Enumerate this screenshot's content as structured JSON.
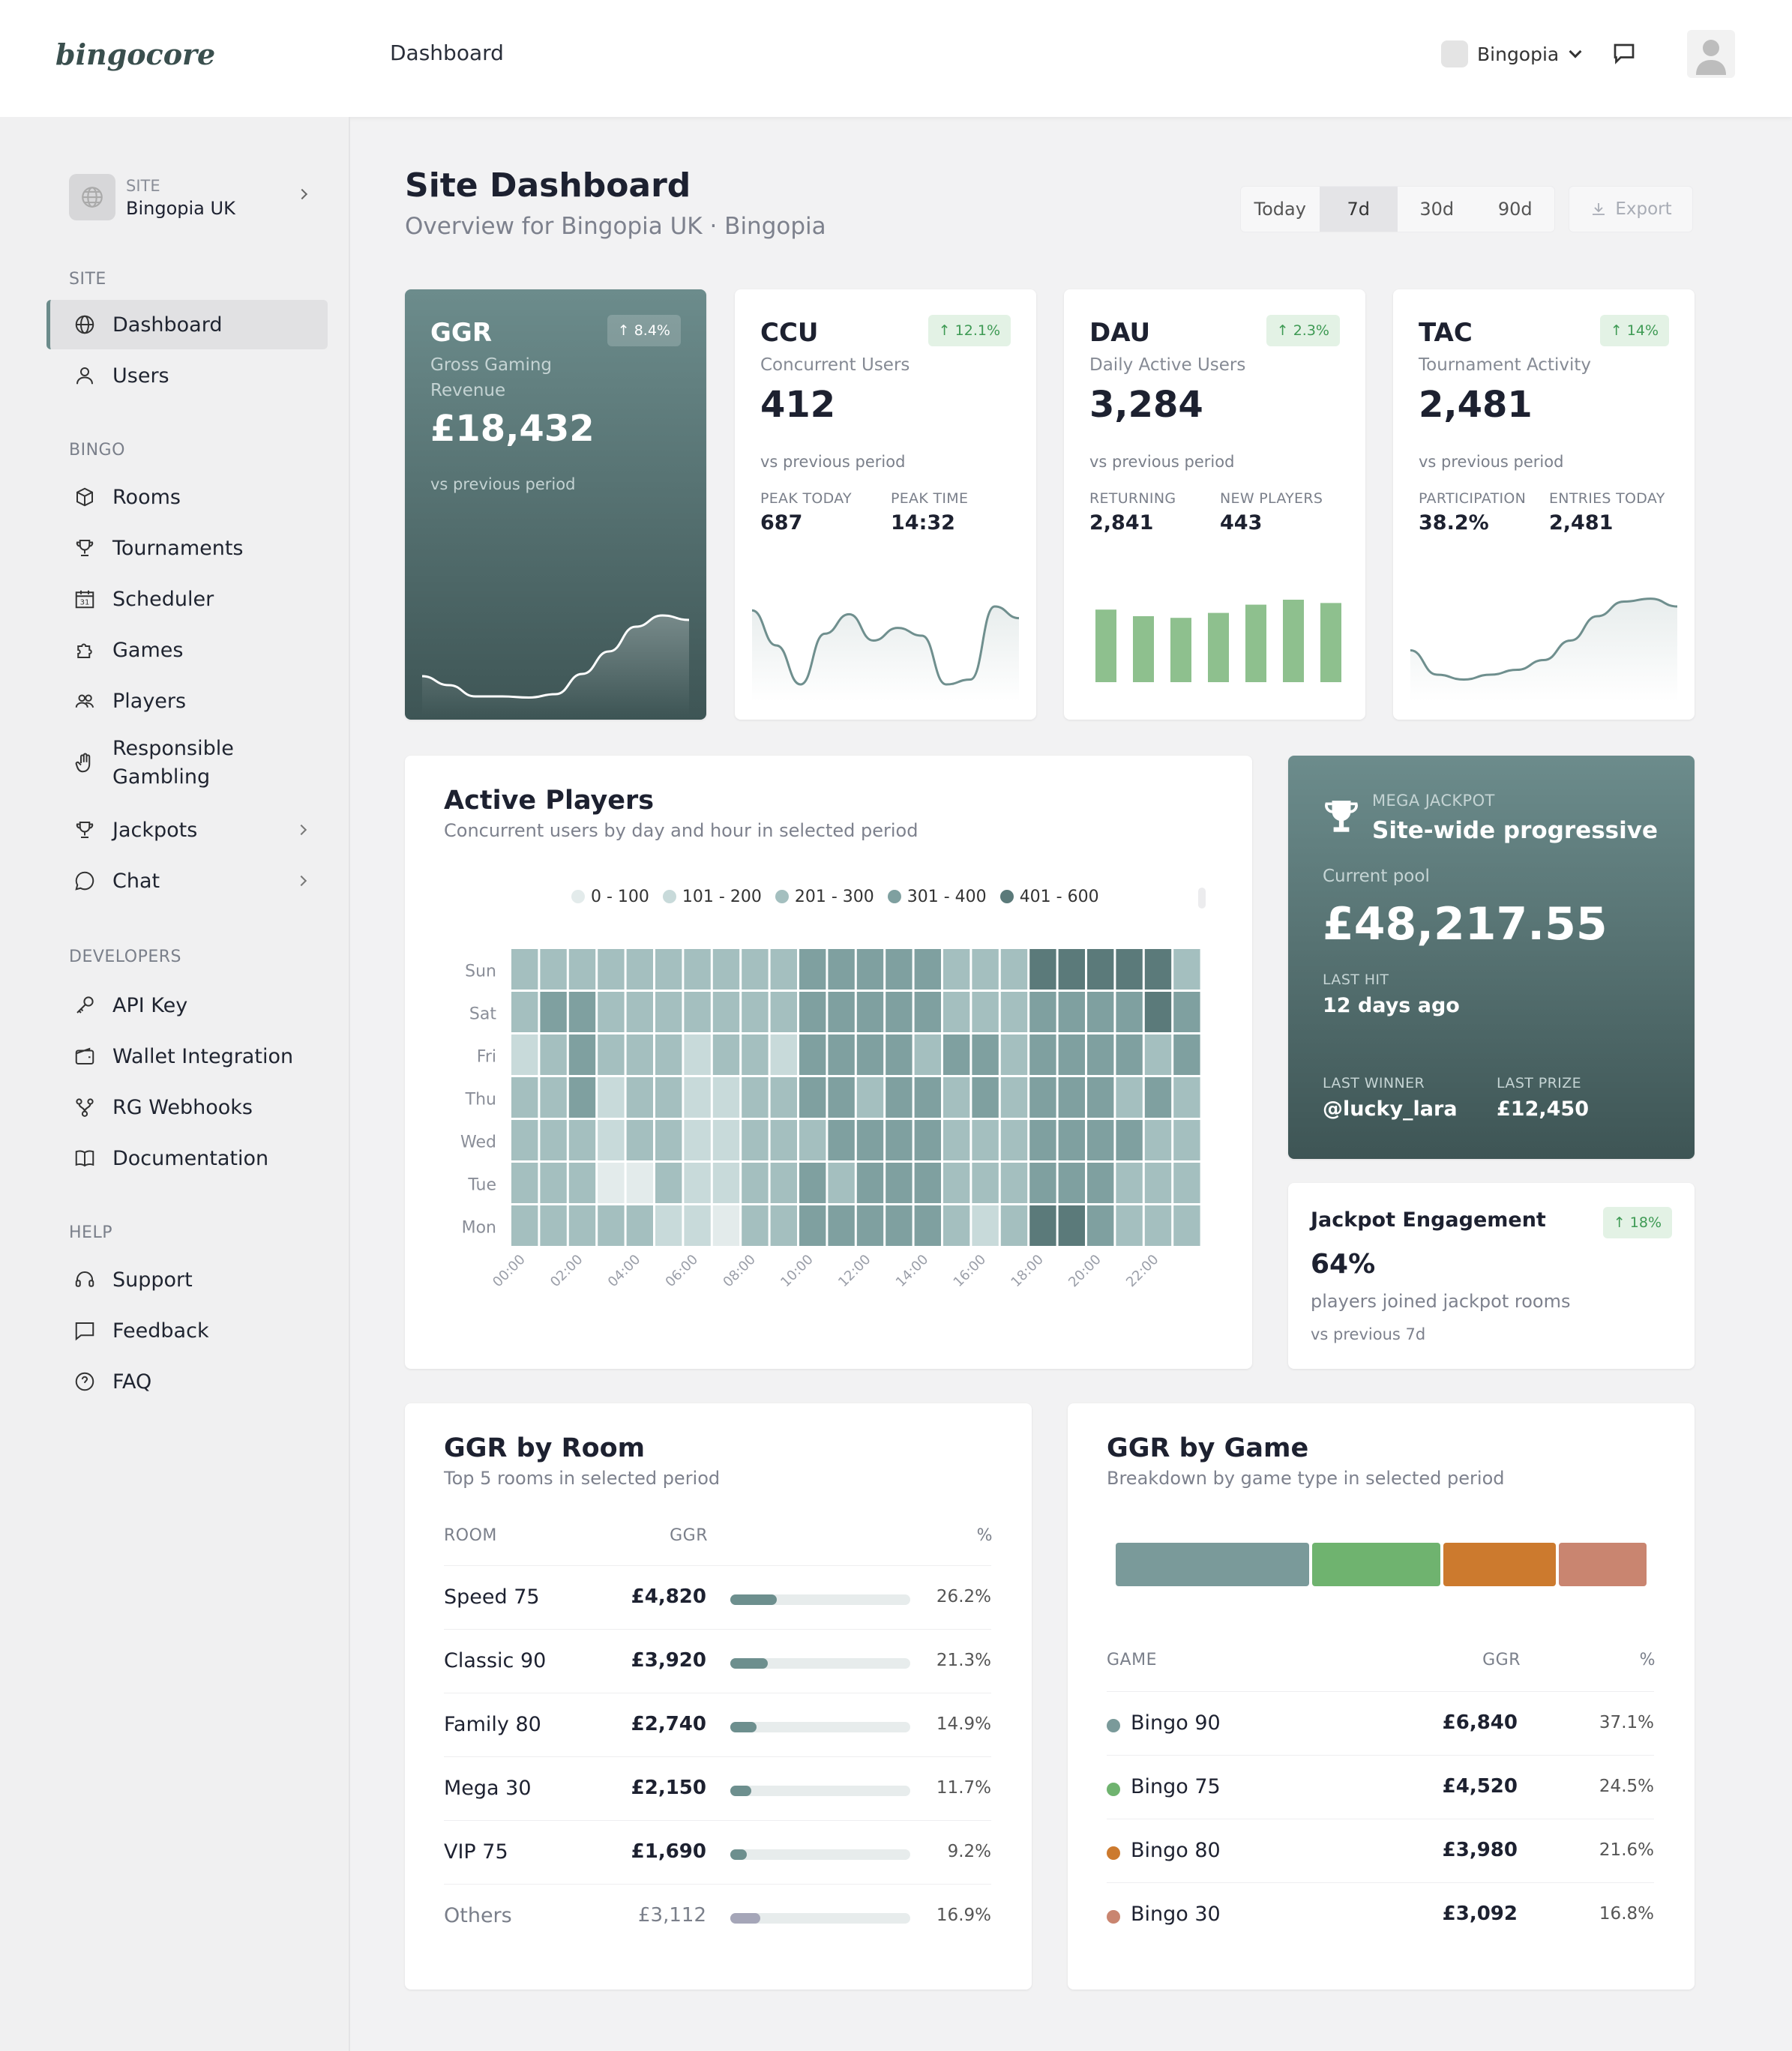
{
  "app": {
    "logo": "bingocore",
    "header_title": "Dashboard",
    "brand": "Bingopia"
  },
  "sidebar": {
    "site_label": "SITE",
    "site_name": "Bingopia UK",
    "sections": {
      "site": "SITE",
      "bingo": "BINGO",
      "developers": "DEVELOPERS",
      "help": "HELP"
    },
    "items": {
      "dashboard": "Dashboard",
      "users": "Users",
      "rooms": "Rooms",
      "tournaments": "Tournaments",
      "scheduler": "Scheduler",
      "games": "Games",
      "players": "Players",
      "responsible_1": "Responsible",
      "responsible_2": "Gambling",
      "jackpots": "Jackpots",
      "chat": "Chat",
      "api_key": "API Key",
      "wallet": "Wallet Integration",
      "webhooks": "RG Webhooks",
      "docs": "Documentation",
      "support": "Support",
      "feedback": "Feedback",
      "faq": "FAQ"
    },
    "calendar_day": "31"
  },
  "page": {
    "title": "Site Dashboard",
    "subtitle": "Overview for Bingopia UK · Bingopia"
  },
  "ranges": [
    "Today",
    "7d",
    "30d",
    "90d"
  ],
  "selected_range": "7d",
  "export_label": "Export",
  "kpis": {
    "ggr": {
      "title": "GGR",
      "sub": "Gross Gaming Revenue",
      "value": "£18,432",
      "vs": "vs previous period",
      "badge": "8.4%"
    },
    "ccu": {
      "title": "CCU",
      "sub": "Concurrent Users",
      "value": "412",
      "vs": "vs previous period",
      "badge": "12.1%",
      "m1_label": "PEAK TODAY",
      "m1_value": "687",
      "m2_label": "PEAK TIME",
      "m2_value": "14:32"
    },
    "dau": {
      "title": "DAU",
      "sub": "Daily Active Users",
      "value": "3,284",
      "vs": "vs previous period",
      "badge": "2.3%",
      "m1_label": "RETURNING",
      "m1_value": "2,841",
      "m2_label": "NEW PLAYERS",
      "m2_value": "443"
    },
    "tac": {
      "title": "TAC",
      "sub": "Tournament Activity",
      "value": "2,481",
      "vs": "vs previous period",
      "badge": "14%",
      "m1_label": "PARTICIPATION",
      "m1_value": "38.2%",
      "m2_label": "ENTRIES TODAY",
      "m2_value": "2,481"
    }
  },
  "active_players": {
    "title": "Active Players",
    "subtitle": "Concurrent users by day and hour in selected period",
    "legend": [
      "0 - 100",
      "101 - 200",
      "201 - 300",
      "301 - 400",
      "401 - 600"
    ],
    "legend_colors": [
      "#e3ebeb",
      "#c8dada",
      "#a4bfbf",
      "#7fa0a0",
      "#5b7a7a"
    ],
    "days": [
      "Sun",
      "Sat",
      "Fri",
      "Thu",
      "Wed",
      "Tue",
      "Mon"
    ],
    "hours": [
      "00:00",
      "02:00",
      "04:00",
      "06:00",
      "08:00",
      "10:00",
      "12:00",
      "14:00",
      "16:00",
      "18:00",
      "20:00",
      "22:00"
    ],
    "levels": [
      [
        2,
        2,
        2,
        2,
        2,
        2,
        2,
        2,
        2,
        2,
        3,
        3,
        3,
        3,
        3,
        2,
        2,
        2,
        4,
        4,
        4,
        4,
        4,
        2
      ],
      [
        2,
        3,
        3,
        2,
        2,
        2,
        2,
        2,
        2,
        2,
        3,
        3,
        3,
        3,
        3,
        2,
        2,
        2,
        3,
        3,
        3,
        3,
        4,
        3
      ],
      [
        1,
        2,
        3,
        2,
        2,
        2,
        1,
        2,
        2,
        1,
        3,
        3,
        3,
        3,
        2,
        3,
        3,
        2,
        3,
        3,
        3,
        3,
        2,
        3
      ],
      [
        2,
        2,
        3,
        1,
        2,
        2,
        1,
        1,
        2,
        2,
        3,
        3,
        2,
        3,
        3,
        2,
        3,
        2,
        3,
        3,
        3,
        2,
        3,
        2
      ],
      [
        2,
        2,
        2,
        1,
        2,
        2,
        1,
        1,
        2,
        2,
        2,
        3,
        3,
        3,
        3,
        2,
        2,
        2,
        3,
        3,
        3,
        3,
        2,
        2
      ],
      [
        2,
        2,
        2,
        0,
        0,
        2,
        1,
        1,
        2,
        2,
        3,
        2,
        3,
        3,
        3,
        2,
        2,
        2,
        3,
        3,
        3,
        2,
        2,
        2
      ],
      [
        2,
        2,
        2,
        2,
        2,
        1,
        1,
        0,
        2,
        2,
        3,
        3,
        3,
        3,
        3,
        2,
        1,
        2,
        4,
        4,
        3,
        2,
        2,
        2
      ]
    ]
  },
  "jackpot": {
    "label": "MEGA JACKPOT",
    "name": "Site-wide progressive",
    "pool_label": "Current pool",
    "pool_value": "£48,217.55",
    "last_hit_label": "LAST HIT",
    "last_hit_value": "12 days ago",
    "winner_label": "LAST WINNER",
    "winner_value": "@lucky_lara",
    "prize_label": "LAST PRIZE",
    "prize_value": "£12,450"
  },
  "engagement": {
    "title": "Jackpot Engagement",
    "badge": "18%",
    "value": "64%",
    "desc": "players joined jackpot rooms",
    "vs": "vs previous 7d"
  },
  "ggr_room": {
    "title": "GGR by Room",
    "subtitle": "Top 5 rooms in selected period",
    "headers": {
      "room": "ROOM",
      "ggr": "GGR",
      "pct": "%"
    },
    "rows": [
      {
        "name": "Speed 75",
        "ggr": "£4,820",
        "pct": "26.2%",
        "frac": 0.262
      },
      {
        "name": "Classic 90",
        "ggr": "£3,920",
        "pct": "21.3%",
        "frac": 0.213
      },
      {
        "name": "Family 80",
        "ggr": "£2,740",
        "pct": "14.9%",
        "frac": 0.149
      },
      {
        "name": "Mega 30",
        "ggr": "£2,150",
        "pct": "11.7%",
        "frac": 0.117
      },
      {
        "name": "VIP 75",
        "ggr": "£1,690",
        "pct": "9.2%",
        "frac": 0.092
      },
      {
        "name": "Others",
        "ggr": "£3,112",
        "pct": "16.9%",
        "frac": 0.169
      }
    ]
  },
  "ggr_game": {
    "title": "GGR by Game",
    "subtitle": "Breakdown by game type in selected period",
    "headers": {
      "game": "GAME",
      "ggr": "GGR",
      "pct": "%"
    },
    "rows": [
      {
        "name": "Bingo 90",
        "ggr": "£6,840",
        "pct": "37.1%",
        "share": 37.1,
        "color": "#7a9a9a"
      },
      {
        "name": "Bingo 75",
        "ggr": "£4,520",
        "pct": "24.5%",
        "share": 24.5,
        "color": "#6fb36f"
      },
      {
        "name": "Bingo 80",
        "ggr": "£3,980",
        "pct": "21.6%",
        "share": 21.6,
        "color": "#cc7a2e"
      },
      {
        "name": "Bingo 30",
        "ggr": "£3,092",
        "pct": "16.8%",
        "share": 16.8,
        "color": "#c98570"
      }
    ]
  },
  "sparklines": {
    "ggr": [
      0.28,
      0.2,
      0.1,
      0.1,
      0.09,
      0.12,
      0.3,
      0.5,
      0.72,
      0.82,
      0.78
    ],
    "ccu": [
      0.86,
      0.5,
      0.1,
      0.62,
      0.82,
      0.55,
      0.68,
      0.6,
      0.1,
      0.15,
      0.9,
      0.78
    ],
    "dau": [
      0.88,
      0.8,
      0.78,
      0.84,
      0.94,
      1.0,
      0.96
    ],
    "tac": [
      0.45,
      0.2,
      0.15,
      0.2,
      0.25,
      0.35,
      0.55,
      0.8,
      0.95,
      0.98,
      0.9
    ]
  }
}
